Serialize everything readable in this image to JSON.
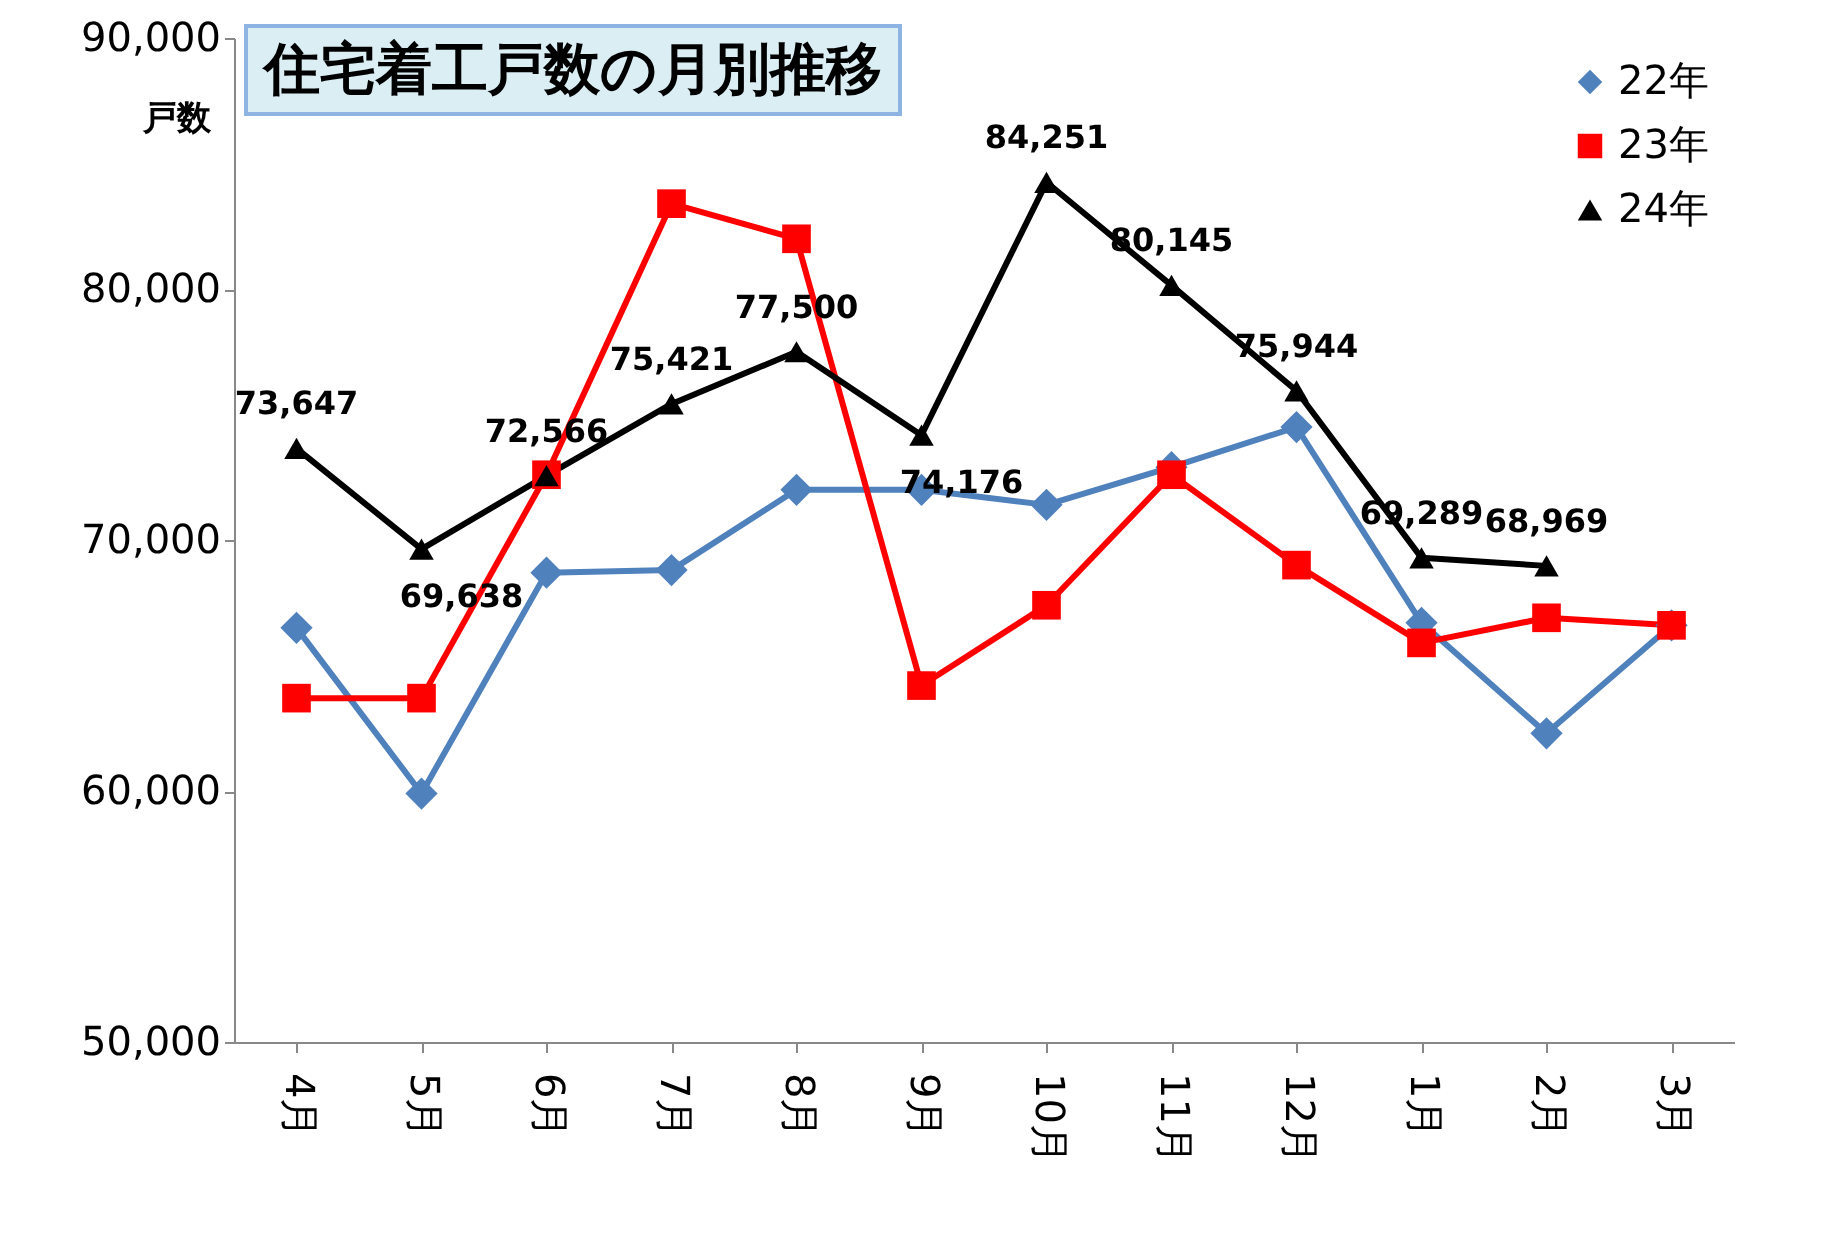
{
  "chart_data": {
    "type": "line",
    "title": "住宅着工戸数の月別推移",
    "ylabel": "戸数",
    "categories": [
      "4月",
      "5月",
      "6月",
      "7月",
      "8月",
      "9月",
      "10月",
      "11月",
      "12月",
      "1月",
      "2月",
      "3月"
    ],
    "series": [
      {
        "name": "22年",
        "color": "#4f81bd",
        "marker": "diamond",
        "values": [
          66500,
          59900,
          68700,
          68800,
          72000,
          72000,
          71400,
          72900,
          74500,
          66700,
          62300,
          66600
        ]
      },
      {
        "name": "23年",
        "color": "#ff0000",
        "marker": "square",
        "values": [
          63700,
          63700,
          72600,
          83400,
          82000,
          64200,
          67400,
          72600,
          69000,
          65900,
          66900,
          66600
        ]
      },
      {
        "name": "24年",
        "color": "#000000",
        "marker": "triangle",
        "values": [
          73647,
          69638,
          72566,
          75421,
          77500,
          74176,
          84251,
          80145,
          75944,
          69289,
          68969,
          null
        ],
        "value_labels": [
          "73,647",
          "69,638",
          "72,566",
          "75,421",
          "77,500",
          "74,176",
          "84,251",
          "80,145",
          "75,944",
          "69,289",
          "68,969",
          null
        ]
      }
    ],
    "ylim": [
      50000,
      90000
    ],
    "yticks": [
      {
        "value": 50000,
        "label": "50,000"
      },
      {
        "value": 60000,
        "label": "60,000"
      },
      {
        "value": 70000,
        "label": "70,000"
      },
      {
        "value": 80000,
        "label": "80,000"
      },
      {
        "value": 90000,
        "label": "90,000"
      }
    ],
    "grid": false,
    "legend": "top right"
  }
}
